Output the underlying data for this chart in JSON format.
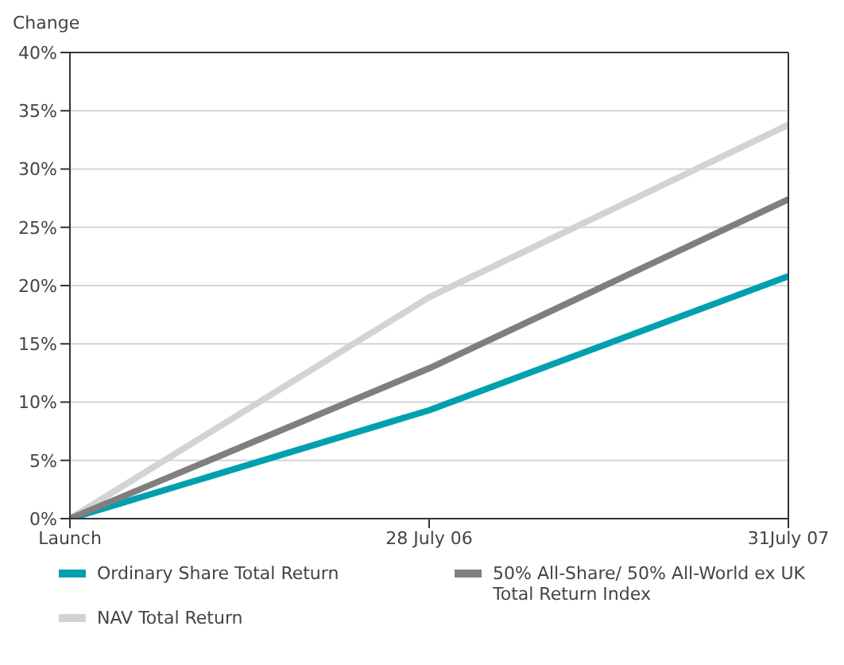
{
  "chart_data": {
    "type": "line",
    "ylabel": "Change",
    "categories": [
      "Launch",
      "28 July 06",
      "31July 07"
    ],
    "series": [
      {
        "name": "Ordinary Share Total Return",
        "color": "#00a0af",
        "values": [
          0,
          9.3,
          20.8
        ]
      },
      {
        "name": "NAV Total Return",
        "color": "#d3d3d3",
        "values": [
          0,
          19,
          33.8
        ]
      },
      {
        "name": "50% All-Share/ 50% All-World ex UK Total Return Index",
        "color": "#7f7f7f",
        "values": [
          0,
          12.9,
          27.4
        ]
      }
    ],
    "ylim": [
      0,
      40
    ],
    "yticks": [
      {
        "value": 0,
        "label": "0%"
      },
      {
        "value": 5,
        "label": "5%"
      },
      {
        "value": 10,
        "label": "10%"
      },
      {
        "value": 15,
        "label": "15%"
      },
      {
        "value": 20,
        "label": "20%"
      },
      {
        "value": 25,
        "label": "25%"
      },
      {
        "value": 30,
        "label": "30%"
      },
      {
        "value": 35,
        "label": "35%"
      },
      {
        "value": 40,
        "label": "40%"
      }
    ],
    "grid": "y",
    "legend": "bottom",
    "marker": "none",
    "line_style": "solid"
  }
}
